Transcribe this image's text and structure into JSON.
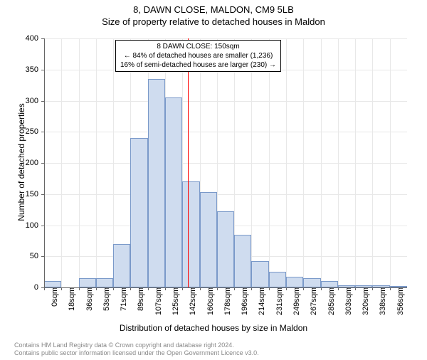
{
  "title_main": "8, DAWN CLOSE, MALDON, CM9 5LB",
  "title_sub": "Size of property relative to detached houses in Maldon",
  "annotation": {
    "line1": "8 DAWN CLOSE: 150sqm",
    "line2": "← 84% of detached houses are smaller (1,236)",
    "line3": "16% of semi-detached houses are larger (230) →"
  },
  "ylabel": "Number of detached properties",
  "xlabel": "Distribution of detached houses by size in Maldon",
  "footer": {
    "line1": "Contains HM Land Registry data © Crown copyright and database right 2024.",
    "line2": "Contains public sector information licensed under the Open Government Licence v3.0."
  },
  "chart": {
    "type": "histogram",
    "bar_fill": "#cfdcef",
    "bar_stroke": "#7a99c9",
    "reference_line_color": "#ff0000",
    "reference_x_index": 8.3,
    "grid_color": "#e8e8e8",
    "background_color": "#ffffff",
    "y_ticks": [
      0,
      50,
      100,
      150,
      200,
      250,
      300,
      350,
      400
    ],
    "ylim": [
      0,
      400
    ],
    "x_labels": [
      "0sqm",
      "18sqm",
      "36sqm",
      "53sqm",
      "71sqm",
      "89sqm",
      "107sqm",
      "125sqm",
      "142sqm",
      "160sqm",
      "178sqm",
      "196sqm",
      "214sqm",
      "231sqm",
      "249sqm",
      "267sqm",
      "285sqm",
      "303sqm",
      "320sqm",
      "338sqm",
      "356sqm"
    ],
    "values": [
      10,
      0,
      15,
      15,
      70,
      240,
      335,
      305,
      170,
      153,
      122,
      85,
      42,
      25,
      17,
      15,
      10,
      4,
      3,
      3,
      2
    ],
    "title_fontsize": 13,
    "label_fontsize": 12,
    "tick_fontsize": 11,
    "annotation_fontsize": 10
  }
}
